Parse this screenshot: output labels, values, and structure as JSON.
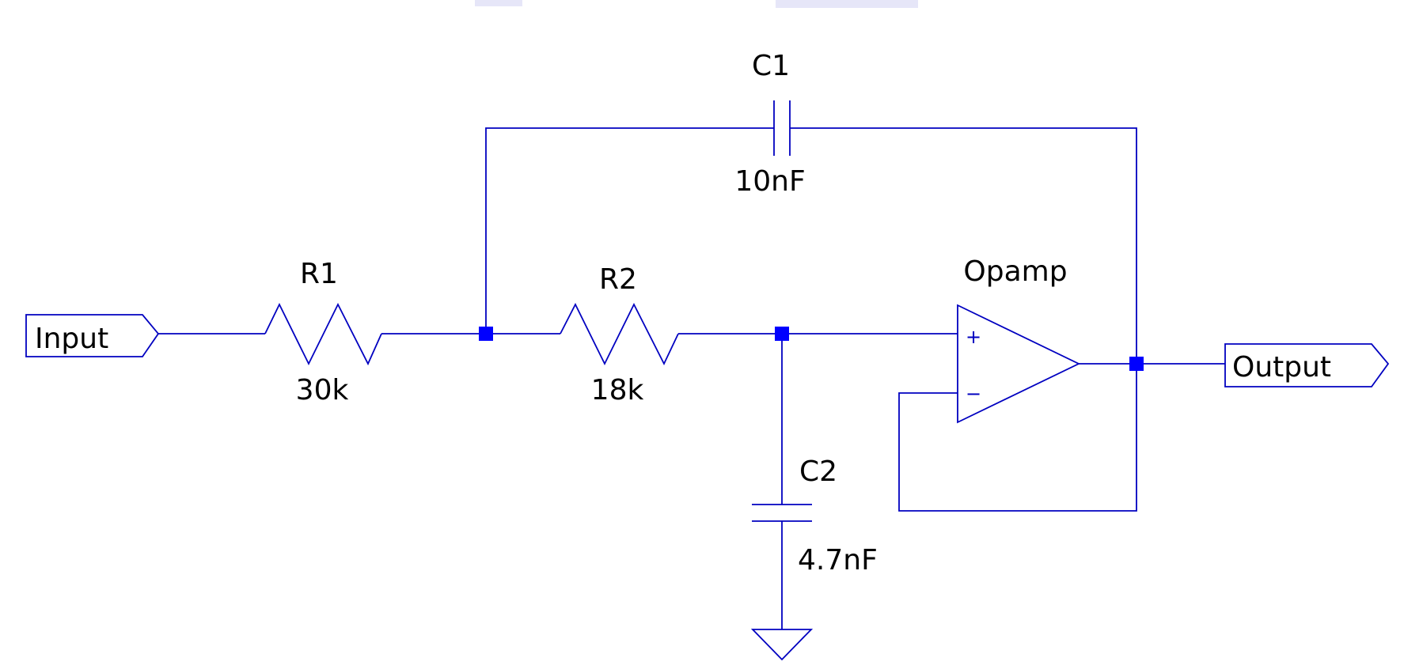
{
  "diagram": {
    "components": {
      "r1": {
        "ref": "R1",
        "value": "30k"
      },
      "r2": {
        "ref": "R2",
        "value": "18k"
      },
      "c1": {
        "ref": "C1",
        "value": "10nF"
      },
      "c2": {
        "ref": "C2",
        "value": "4.7nF"
      },
      "opamp": {
        "ref": "Opamp",
        "plus": "+",
        "minus": "−"
      }
    },
    "ports": {
      "input": "Input",
      "output": "Output"
    },
    "colors": {
      "wire": "#0000c0",
      "junction": "#0000ff",
      "text": "#000000"
    }
  }
}
